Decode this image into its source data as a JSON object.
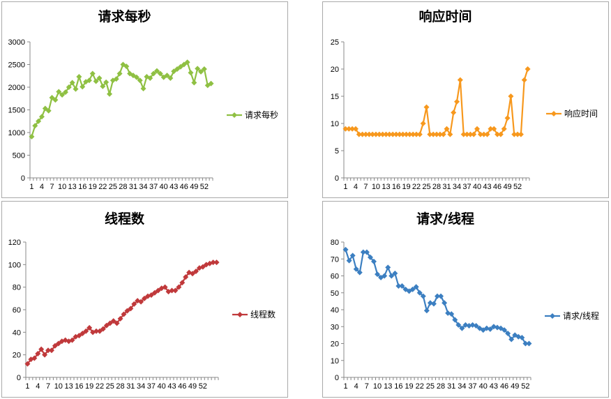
{
  "charts": [
    {
      "type": "line",
      "title": "请求每秒",
      "color": "#8fc043",
      "marker": "diamond",
      "ylim": [
        0,
        3000
      ],
      "yticks": [
        0,
        500,
        1000,
        1500,
        2000,
        2500,
        3000
      ],
      "xticks": [
        1,
        4,
        7,
        10,
        13,
        16,
        19,
        22,
        25,
        28,
        31,
        34,
        37,
        40,
        43,
        46,
        49,
        52
      ],
      "series": [
        {
          "name": "请求每秒",
          "values": [
            910,
            1150,
            1250,
            1350,
            1530,
            1480,
            1770,
            1720,
            1900,
            1830,
            1890,
            2000,
            2100,
            1960,
            2230,
            2010,
            2120,
            2150,
            2300,
            2130,
            2200,
            2020,
            2110,
            1850,
            2150,
            2180,
            2300,
            2500,
            2460,
            2300,
            2260,
            2220,
            2150,
            1970,
            2230,
            2200,
            2300,
            2360,
            2300,
            2220,
            2260,
            2200,
            2350,
            2400,
            2450,
            2500,
            2550,
            2320,
            2100,
            2410,
            2340,
            2400,
            2040,
            2080
          ]
        }
      ]
    },
    {
      "type": "line",
      "title": "响应时间",
      "color": "#f7981d",
      "marker": "diamond",
      "ylim": [
        0,
        25
      ],
      "yticks": [
        0,
        5,
        10,
        15,
        20,
        25
      ],
      "xticks": [
        1,
        4,
        7,
        10,
        13,
        16,
        19,
        22,
        25,
        28,
        31,
        34,
        37,
        40,
        43,
        46,
        49,
        52
      ],
      "series": [
        {
          "name": "响应时间",
          "values": [
            9,
            9,
            9,
            9,
            8,
            8,
            8,
            8,
            8,
            8,
            8,
            8,
            8,
            8,
            8,
            8,
            8,
            8,
            8,
            8,
            8,
            8,
            8,
            10,
            13,
            8,
            8,
            8,
            8,
            8,
            9,
            8,
            12,
            14,
            18,
            8,
            8,
            8,
            8,
            9,
            8,
            8,
            8,
            9,
            9,
            8,
            8,
            9,
            11,
            15,
            8,
            8,
            8,
            18,
            20
          ]
        }
      ]
    },
    {
      "type": "line",
      "title": "线程数",
      "color": "#c0393b",
      "marker": "diamond",
      "ylim": [
        0,
        120
      ],
      "yticks": [
        0,
        20,
        40,
        60,
        80,
        100,
        120
      ],
      "xticks": [
        1,
        4,
        7,
        10,
        13,
        16,
        19,
        22,
        25,
        28,
        31,
        34,
        37,
        40,
        43,
        46,
        49,
        52
      ],
      "series": [
        {
          "name": "线程数",
          "values": [
            12,
            16,
            17,
            21,
            25,
            20,
            24,
            24,
            28,
            30,
            32,
            33,
            32,
            33,
            36,
            37,
            39,
            41,
            44,
            40,
            41,
            41,
            43,
            46,
            48,
            50,
            48,
            52,
            56,
            59,
            61,
            65,
            68,
            67,
            70,
            72,
            73,
            75,
            77,
            79,
            80,
            76,
            77,
            77,
            80,
            84,
            89,
            93,
            92,
            94,
            97,
            98,
            100,
            101,
            102,
            102
          ]
        }
      ]
    },
    {
      "type": "line",
      "title": "请求/线程",
      "color": "#3c7fc1",
      "marker": "diamond",
      "ylim": [
        0,
        80
      ],
      "yticks": [
        0,
        10,
        20,
        30,
        40,
        50,
        60,
        70,
        80
      ],
      "xticks": [
        1,
        4,
        7,
        10,
        13,
        16,
        19,
        22,
        25,
        28,
        31,
        34,
        37,
        40,
        43,
        46,
        49,
        52
      ],
      "series": [
        {
          "name": "请求/线程",
          "values": [
            75.5,
            69,
            72,
            64,
            62,
            74,
            74,
            71,
            68.5,
            61,
            59,
            60,
            65,
            60,
            61.5,
            54,
            54,
            52,
            51,
            52,
            53.5,
            50,
            48,
            39.5,
            44,
            43.5,
            48,
            48,
            44,
            38,
            37.5,
            34,
            31,
            29,
            31,
            30.5,
            31,
            30.5,
            29,
            28,
            29,
            28.5,
            30,
            29.5,
            29,
            28,
            26,
            22.5,
            25,
            24,
            23.5,
            20,
            20
          ]
        }
      ]
    }
  ]
}
